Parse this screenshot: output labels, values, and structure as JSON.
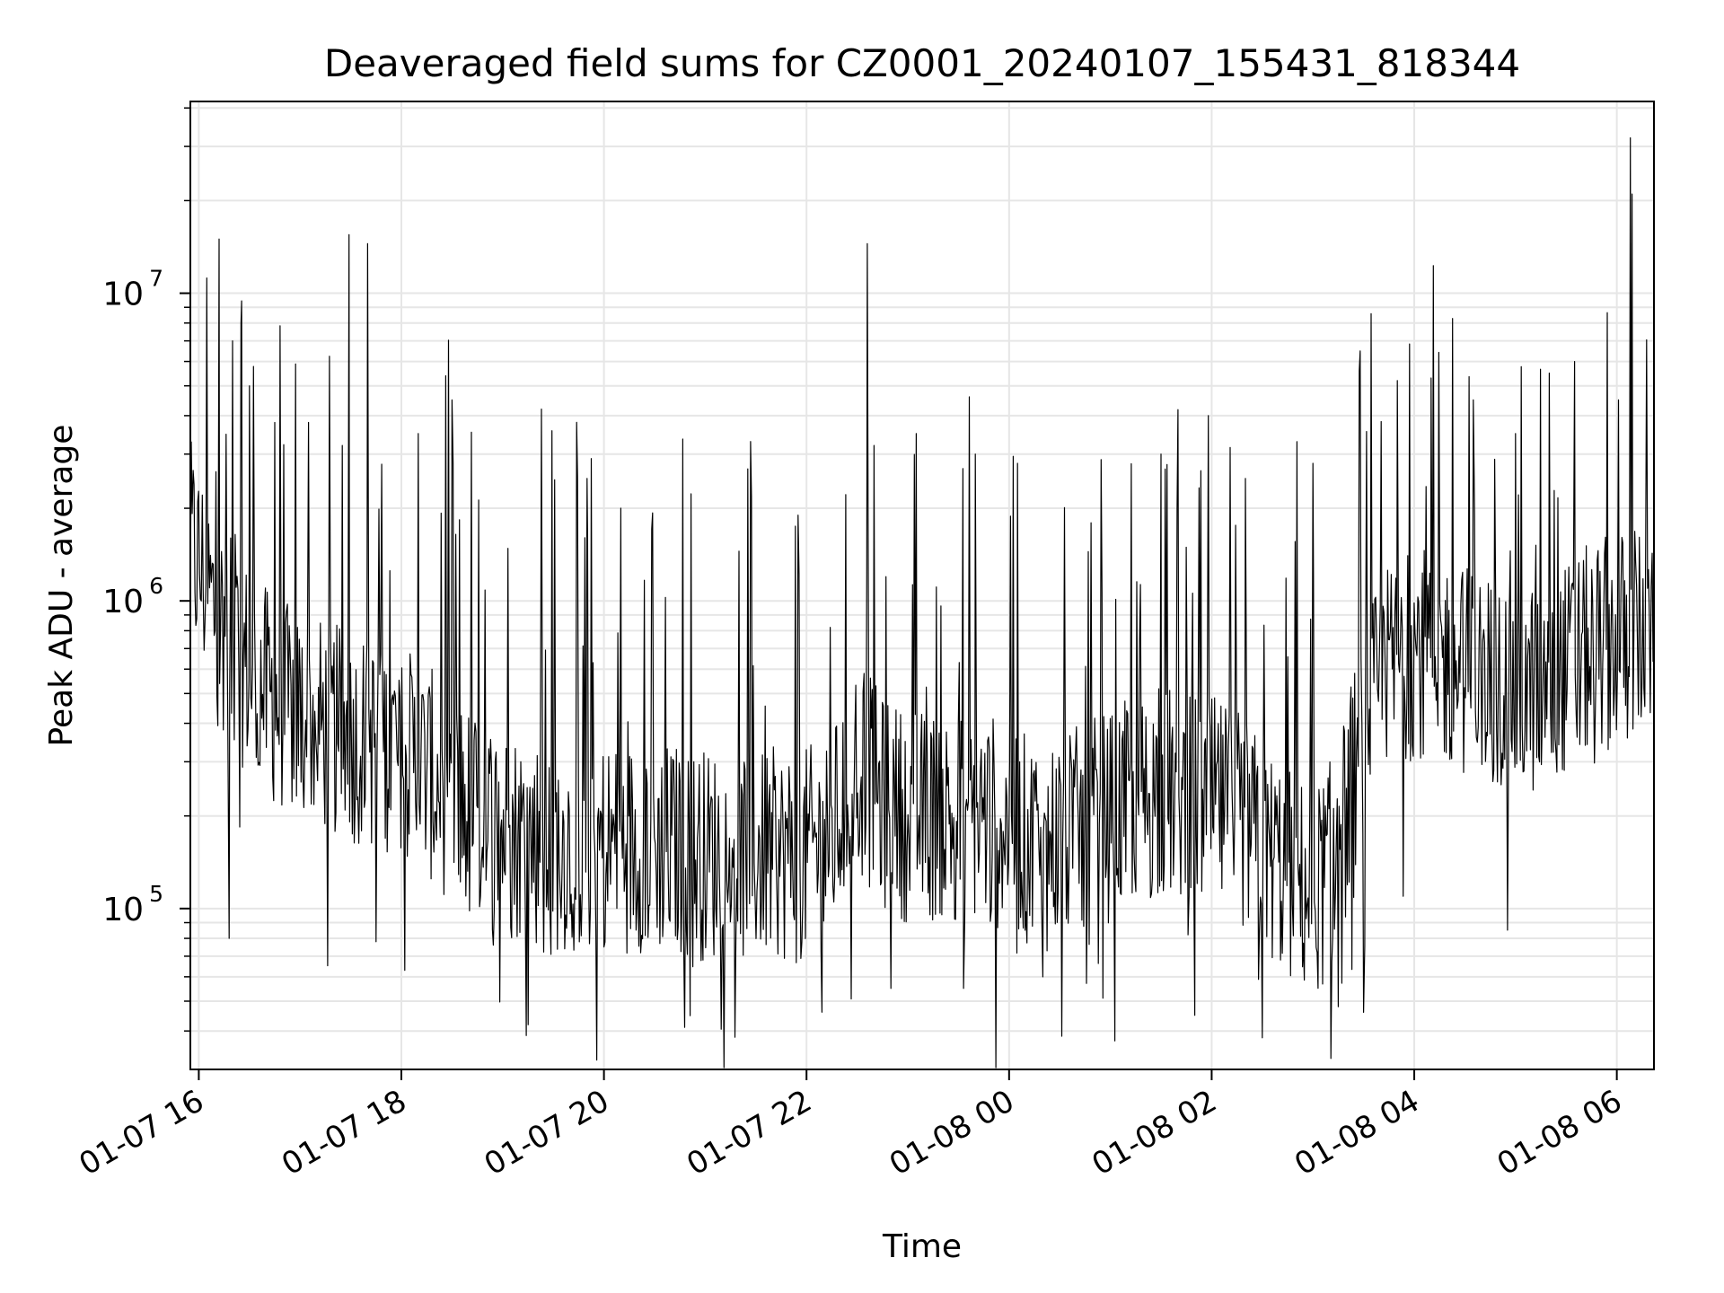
{
  "chart_data": {
    "type": "line",
    "title": "Deaveraged field sums for CZ0001_20240107_155431_818344",
    "xlabel": "Time",
    "ylabel": "Peak ADU - average",
    "xlim": [
      "2024-01-07 15:55",
      "2024-01-08 06:22"
    ],
    "ylim": [
      30000,
      42000000
    ],
    "y_scale": "log",
    "grid": true,
    "line_color": "#000000",
    "x_ticks": [
      {
        "value": "2024-01-07 16:00",
        "label": "01-07 16"
      },
      {
        "value": "2024-01-07 18:00",
        "label": "01-07 18"
      },
      {
        "value": "2024-01-07 20:00",
        "label": "01-07 20"
      },
      {
        "value": "2024-01-07 22:00",
        "label": "01-07 22"
      },
      {
        "value": "2024-01-08 00:00",
        "label": "01-08 00"
      },
      {
        "value": "2024-01-08 02:00",
        "label": "01-08 02"
      },
      {
        "value": "2024-01-08 04:00",
        "label": "01-08 04"
      },
      {
        "value": "2024-01-08 06:00",
        "label": "01-08 06"
      }
    ],
    "y_ticks": [
      {
        "value": 100000,
        "base": "10",
        "exp": "5"
      },
      {
        "value": 1000000,
        "base": "10",
        "exp": "6"
      },
      {
        "value": 10000000,
        "base": "10",
        "exp": "7"
      }
    ],
    "series": [
      {
        "x": [
          "2024-01-07 15:55",
          "2024-01-07 16:00",
          "2024-01-07 16:05",
          "2024-01-07 16:10",
          "2024-01-07 16:20",
          "2024-01-07 16:30",
          "2024-01-07 16:40",
          "2024-01-07 16:50",
          "2024-01-07 17:00",
          "2024-01-07 17:10",
          "2024-01-07 17:20",
          "2024-01-07 17:30",
          "2024-01-07 17:40",
          "2024-01-07 17:50",
          "2024-01-07 18:00",
          "2024-01-07 18:15",
          "2024-01-07 18:30",
          "2024-01-07 18:45",
          "2024-01-07 19:00",
          "2024-01-07 19:15",
          "2024-01-07 19:30",
          "2024-01-07 19:45",
          "2024-01-07 20:00",
          "2024-01-07 20:15",
          "2024-01-07 20:30",
          "2024-01-07 20:45",
          "2024-01-07 21:00",
          "2024-01-07 21:15",
          "2024-01-07 21:30",
          "2024-01-07 21:45",
          "2024-01-07 22:00",
          "2024-01-07 22:15",
          "2024-01-07 22:30",
          "2024-01-07 22:45",
          "2024-01-07 23:00",
          "2024-01-07 23:15",
          "2024-01-07 23:30",
          "2024-01-07 23:45",
          "2024-01-08 00:00",
          "2024-01-08 00:15",
          "2024-01-08 00:30",
          "2024-01-08 00:45",
          "2024-01-08 01:00",
          "2024-01-08 01:15",
          "2024-01-08 01:30",
          "2024-01-08 01:45",
          "2024-01-08 02:00",
          "2024-01-08 02:15",
          "2024-01-08 02:30",
          "2024-01-08 02:45",
          "2024-01-08 03:00",
          "2024-01-08 03:15",
          "2024-01-08 03:30",
          "2024-01-08 03:45",
          "2024-01-08 04:00",
          "2024-01-08 04:15",
          "2024-01-08 04:30",
          "2024-01-08 04:45",
          "2024-01-08 05:00",
          "2024-01-08 05:15",
          "2024-01-08 05:30",
          "2024-01-08 05:45",
          "2024-01-08 06:00",
          "2024-01-08 06:10",
          "2024-01-08 06:22"
        ],
        "y": [
          1500000,
          1300000,
          1100000,
          900000,
          700000,
          600000,
          500000,
          450000,
          420000,
          400000,
          380000,
          360000,
          350000,
          340000,
          330000,
          280000,
          230000,
          200000,
          180000,
          170000,
          160000,
          160000,
          160000,
          160000,
          160000,
          155000,
          150000,
          150000,
          150000,
          150000,
          150000,
          170000,
          300000,
          220000,
          200000,
          200000,
          200000,
          200000,
          180000,
          160000,
          170000,
          180000,
          200000,
          220000,
          240000,
          230000,
          220000,
          200000,
          160000,
          130000,
          110000,
          150000,
          400000,
          600000,
          700000,
          650000,
          600000,
          550000,
          500000,
          520000,
          600000,
          700000,
          750000,
          800000,
          700000
        ],
        "spikes": [
          {
            "x": "2024-01-07 16:12",
            "y": 15000000
          },
          {
            "x": "2024-01-07 16:20",
            "y": 7000000
          },
          {
            "x": "2024-01-07 16:25",
            "y": 8000000
          },
          {
            "x": "2024-01-07 16:30",
            "y": 5000000
          },
          {
            "x": "2024-01-07 16:45",
            "y": 3800000
          },
          {
            "x": "2024-01-07 17:05",
            "y": 3800000
          },
          {
            "x": "2024-01-07 17:25",
            "y": 3200000
          },
          {
            "x": "2024-01-07 17:29",
            "y": 15500000
          },
          {
            "x": "2024-01-07 17:40",
            "y": 14500000
          },
          {
            "x": "2024-01-07 18:10",
            "y": 3500000
          },
          {
            "x": "2024-01-07 18:30",
            "y": 4500000
          },
          {
            "x": "2024-01-07 19:23",
            "y": 4200000
          },
          {
            "x": "2024-01-07 19:50",
            "y": 2500000
          },
          {
            "x": "2024-01-07 20:10",
            "y": 2000000
          },
          {
            "x": "2024-01-07 21:20",
            "y": 1450000
          },
          {
            "x": "2024-01-07 21:55",
            "y": 1900000
          },
          {
            "x": "2024-01-07 22:36",
            "y": 14500000
          },
          {
            "x": "2024-01-07 22:40",
            "y": 3200000
          },
          {
            "x": "2024-01-07 23:05",
            "y": 3500000
          },
          {
            "x": "2024-01-07 23:40",
            "y": 3000000
          },
          {
            "x": "2024-01-08 00:05",
            "y": 2800000
          },
          {
            "x": "2024-01-08 01:30",
            "y": 3000000
          },
          {
            "x": "2024-01-08 01:58",
            "y": 4000000
          },
          {
            "x": "2024-01-08 02:20",
            "y": 2500000
          },
          {
            "x": "2024-01-08 03:00",
            "y": 2800000
          },
          {
            "x": "2024-01-08 03:50",
            "y": 5200000
          },
          {
            "x": "2024-01-08 04:10",
            "y": 5300000
          },
          {
            "x": "2024-01-08 04:35",
            "y": 4500000
          },
          {
            "x": "2024-01-08 05:00",
            "y": 3500000
          },
          {
            "x": "2024-01-08 05:20",
            "y": 5500000
          },
          {
            "x": "2024-01-08 05:35",
            "y": 6000000
          },
          {
            "x": "2024-01-08 06:01",
            "y": 4500000
          },
          {
            "x": "2024-01-08 06:08",
            "y": 32000000
          },
          {
            "x": "2024-01-08 06:09",
            "y": 21000000
          }
        ],
        "dips": [
          {
            "x": "2024-01-07 16:18",
            "y": 80000
          },
          {
            "x": "2024-01-07 17:45",
            "y": 78000
          },
          {
            "x": "2024-01-07 18:02",
            "y": 63000
          },
          {
            "x": "2024-01-07 20:00",
            "y": 75000
          },
          {
            "x": "2024-01-07 22:50",
            "y": 55000
          },
          {
            "x": "2024-01-07 23:33",
            "y": 55000
          },
          {
            "x": "2024-01-08 00:20",
            "y": 60000
          },
          {
            "x": "2024-01-08 01:50",
            "y": 45000
          },
          {
            "x": "2024-01-08 02:30",
            "y": 38000
          },
          {
            "x": "2024-01-08 03:15",
            "y": 48000
          },
          {
            "x": "2024-01-08 03:30",
            "y": 46000
          }
        ]
      }
    ]
  }
}
